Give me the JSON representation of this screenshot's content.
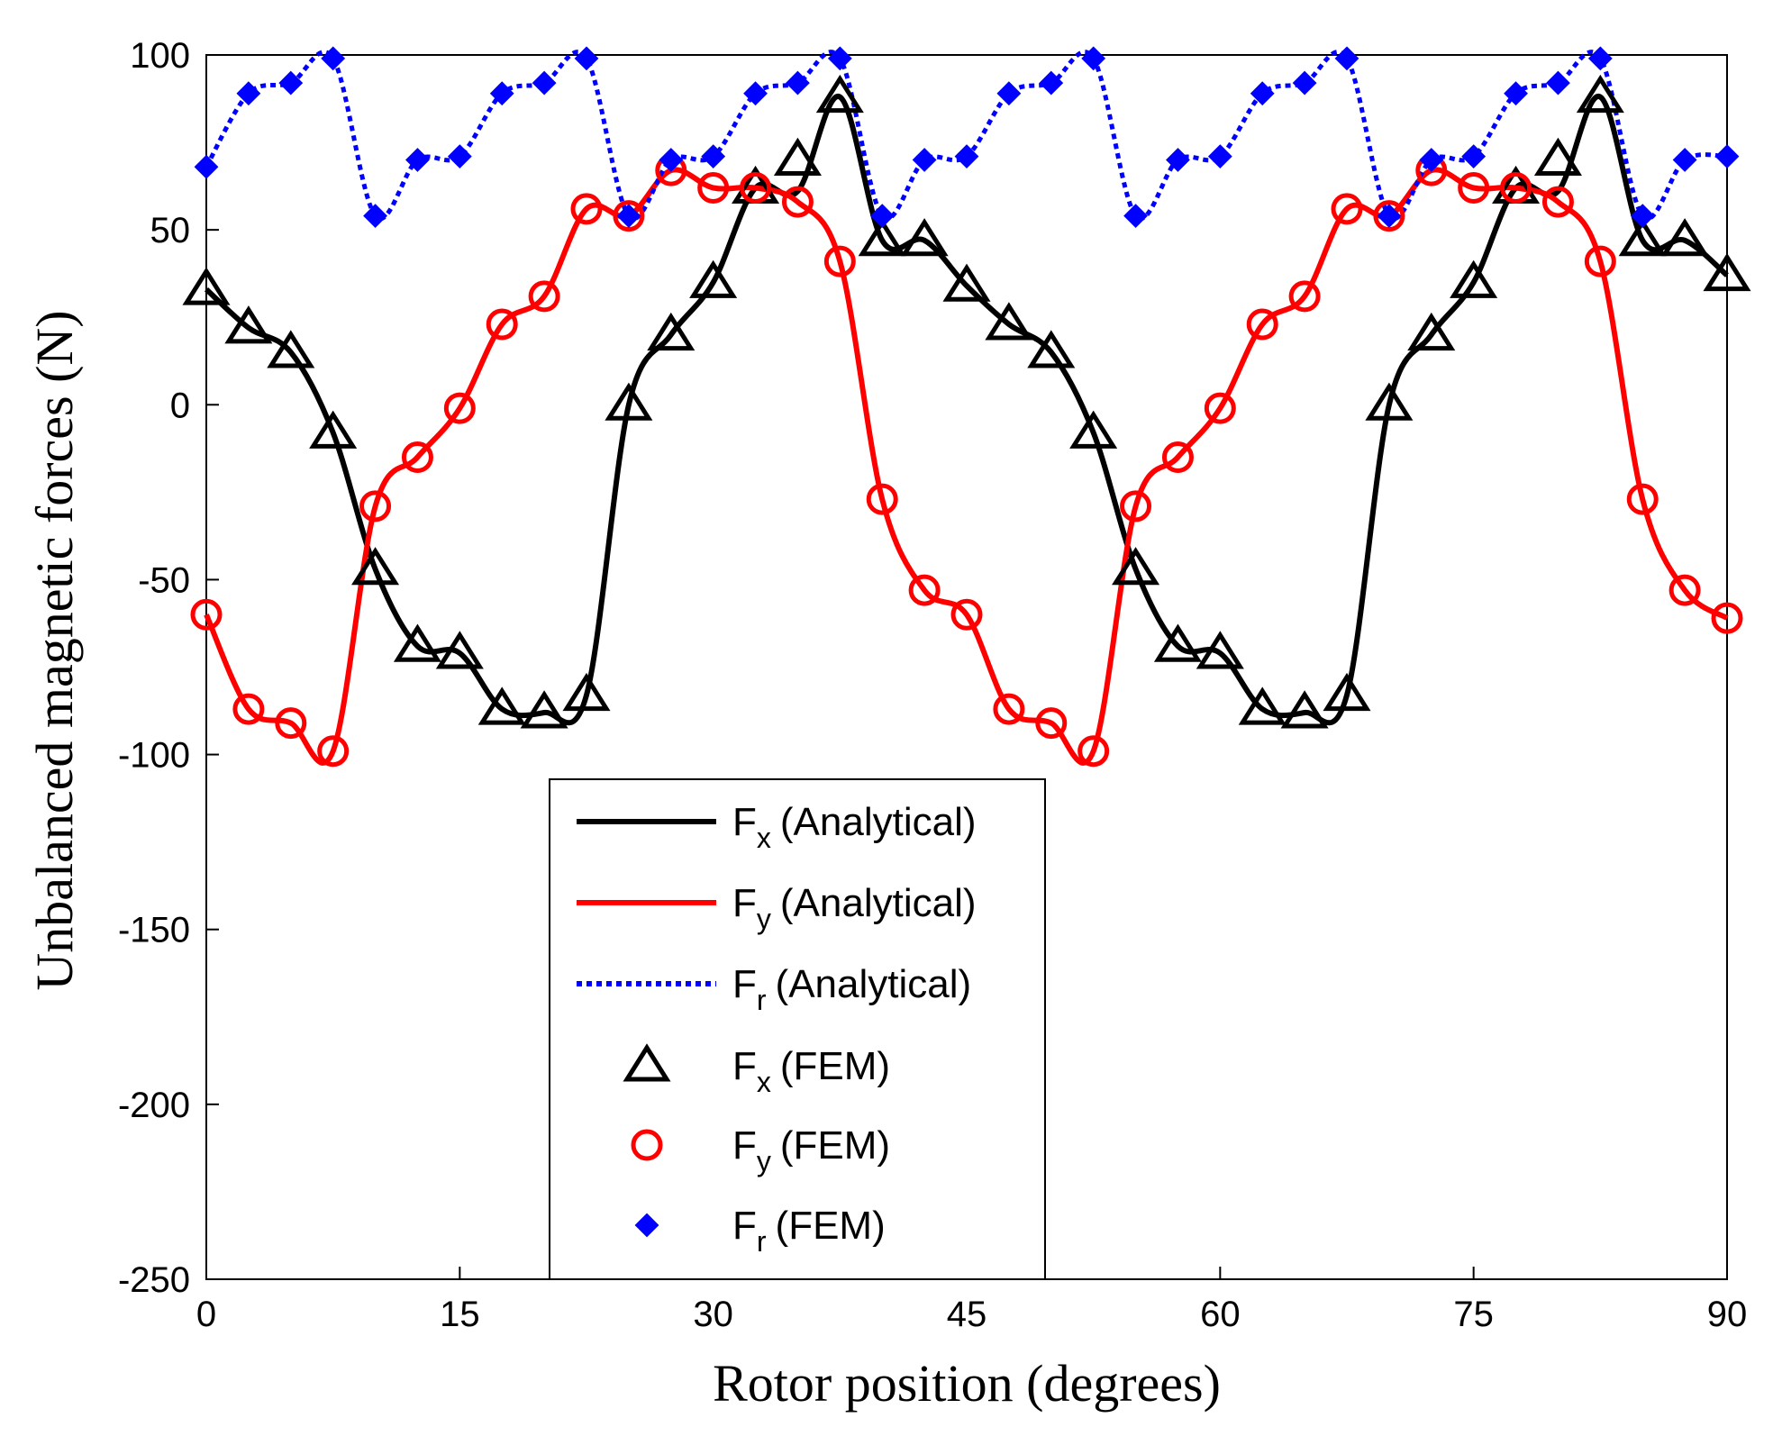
{
  "chart_data": {
    "type": "line",
    "title": "",
    "xlabel": "Rotor position (degrees)",
    "ylabel": "Unbalanced magnetic forces (N)",
    "xlim": [
      0,
      90
    ],
    "ylim": [
      -250,
      100
    ],
    "xticks": [
      0,
      15,
      30,
      45,
      60,
      75,
      90
    ],
    "yticks": [
      100,
      50,
      0,
      -50,
      -100,
      -150,
      -200,
      -250
    ],
    "grid": false,
    "legend_position": "bottom-center",
    "x": [
      0,
      2.5,
      5,
      7.5,
      10,
      12.5,
      15,
      17.5,
      20,
      22.5,
      25,
      27.5,
      30,
      32.5,
      35,
      37.5,
      40,
      42.5,
      45,
      47.5,
      50,
      52.5,
      55,
      57.5,
      60,
      62.5,
      65,
      67.5,
      70,
      72.5,
      75,
      77.5,
      80,
      82.5,
      85,
      87.5,
      90
    ],
    "series": [
      {
        "name": "F",
        "sub": "x",
        "suffix": "(Analytical)",
        "style": "solid",
        "color": "#000000",
        "values": [
          33,
          22,
          15,
          -8,
          -47,
          -69,
          -71,
          -87,
          -88,
          -83,
          0,
          20,
          35,
          62,
          61,
          88,
          47,
          47,
          34,
          23,
          15,
          -8,
          -47,
          -69,
          -71,
          -87,
          -88,
          -83,
          0,
          20,
          35,
          62,
          61,
          88,
          47,
          47,
          37
        ]
      },
      {
        "name": "F",
        "sub": "y",
        "suffix": "(Analytical)",
        "style": "solid",
        "color": "#ff0000",
        "values": [
          -60,
          -87,
          -91,
          -99,
          -29,
          -15,
          -1,
          23,
          31,
          56,
          54,
          67,
          62,
          62,
          58,
          41,
          -27,
          -53,
          -60,
          -87,
          -91,
          -99,
          -29,
          -15,
          -1,
          23,
          31,
          56,
          54,
          67,
          62,
          62,
          58,
          41,
          -27,
          -53,
          -61
        ]
      },
      {
        "name": "F",
        "sub": "r",
        "suffix": "(Analytical)",
        "style": "dotted",
        "color": "#0000ff",
        "values": [
          68,
          89,
          92,
          99,
          54,
          70,
          71,
          89,
          92,
          99,
          54,
          70,
          71,
          89,
          92,
          99,
          54,
          70,
          71,
          89,
          92,
          99,
          54,
          70,
          71,
          89,
          92,
          99,
          54,
          70,
          71,
          89,
          92,
          99,
          54,
          70,
          71
        ]
      },
      {
        "name": "F",
        "sub": "x",
        "suffix": "(FEM)",
        "style": "triangle",
        "color": "#000000",
        "values": [
          33,
          22,
          15,
          -8,
          -47,
          -69,
          -71,
          -87,
          -88,
          -83,
          0,
          20,
          35,
          62,
          70,
          88,
          47,
          47,
          34,
          23,
          15,
          -8,
          -47,
          -69,
          -71,
          -87,
          -88,
          -83,
          0,
          20,
          35,
          62,
          70,
          88,
          47,
          47,
          37
        ]
      },
      {
        "name": "F",
        "sub": "y",
        "suffix": "(FEM)",
        "style": "circle",
        "color": "#ff0000",
        "values": [
          -60,
          -87,
          -91,
          -99,
          -29,
          -15,
          -1,
          23,
          31,
          56,
          54,
          67,
          62,
          62,
          58,
          41,
          -27,
          -53,
          -60,
          -87,
          -91,
          -99,
          -29,
          -15,
          -1,
          23,
          31,
          56,
          54,
          67,
          62,
          62,
          58,
          41,
          -27,
          -53,
          -61
        ]
      },
      {
        "name": "F",
        "sub": "r",
        "suffix": "(FEM)",
        "style": "diamond",
        "color": "#0000ff",
        "values": [
          68,
          89,
          92,
          99,
          54,
          70,
          71,
          89,
          92,
          99,
          54,
          70,
          71,
          89,
          92,
          99,
          54,
          70,
          71,
          89,
          92,
          99,
          54,
          70,
          71,
          89,
          92,
          99,
          54,
          70,
          71,
          89,
          92,
          99,
          54,
          70,
          71
        ]
      }
    ]
  }
}
